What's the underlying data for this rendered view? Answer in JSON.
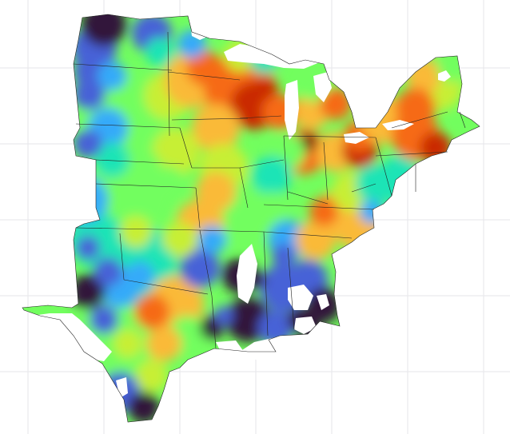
{
  "map": {
    "colormap": [
      "#30123b",
      "#4662d7",
      "#36aaf9",
      "#1ae4b6",
      "#72fe5e",
      "#c7ef34",
      "#faba39",
      "#f66b19",
      "#ca2a04",
      "#7a0403"
    ],
    "background": "#ffffff",
    "grid_color": "#e6e6ea",
    "border_color": "#222222",
    "water_color": "#ffffff",
    "grid": true
  }
}
